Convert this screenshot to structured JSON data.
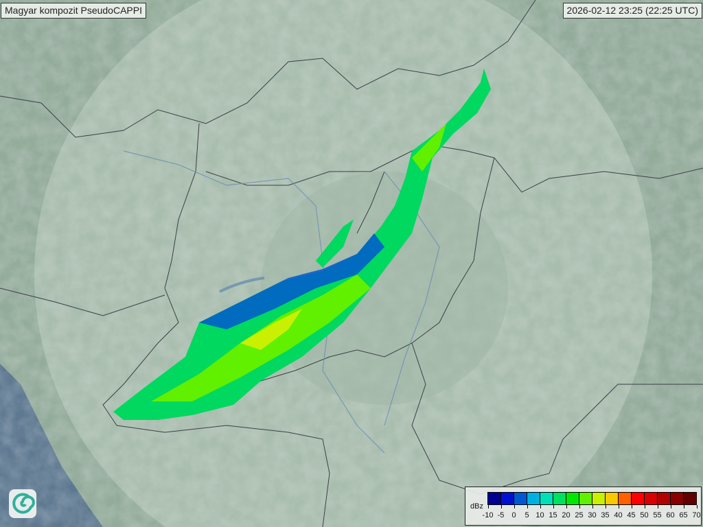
{
  "header": {
    "title": "Magyar kompozit  PseudoCAPPI",
    "timestamp": "2026-02-12 23:25 (22:25 UTC)"
  },
  "legend": {
    "unit": "dBz",
    "ticks": [
      "-10",
      "-5",
      "0",
      "5",
      "10",
      "15",
      "20",
      "25",
      "30",
      "35",
      "40",
      "45",
      "50",
      "55",
      "60",
      "65",
      "70"
    ],
    "colors": [
      "#000090",
      "#0010d0",
      "#0058d0",
      "#00b0e0",
      "#00e0b8",
      "#00e060",
      "#00e800",
      "#60f000",
      "#c8f000",
      "#f8c800",
      "#ff6000",
      "#ff0000",
      "#d80000",
      "#b00000",
      "#880000",
      "#600000"
    ]
  },
  "logo": {
    "icon": "swirl-logo-icon"
  }
}
